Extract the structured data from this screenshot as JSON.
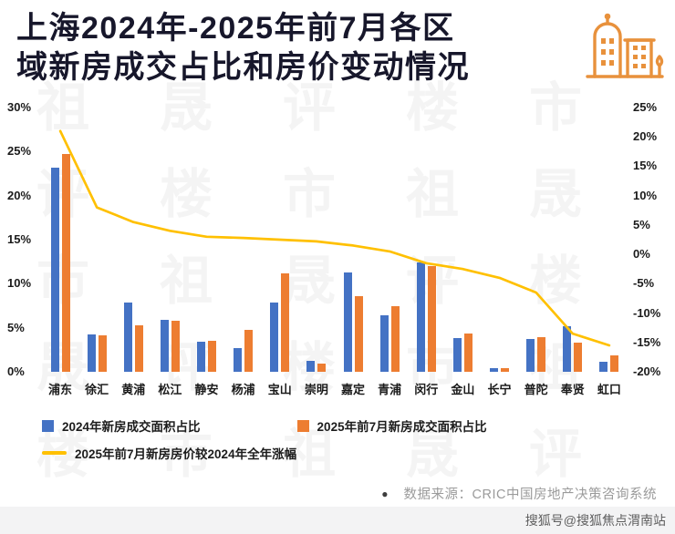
{
  "header": {
    "title_line1": "上海2024年-2025年前7月各区",
    "title_line2": "域新房成交占比和房价变动情况"
  },
  "watermark": {
    "chars": [
      "祖",
      "晟",
      "评",
      "楼",
      "市"
    ]
  },
  "chart_data": {
    "type": "bar+line",
    "categories": [
      "浦东",
      "徐汇",
      "黄浦",
      "松江",
      "静安",
      "杨浦",
      "宝山",
      "崇明",
      "嘉定",
      "青浦",
      "闵行",
      "金山",
      "长宁",
      "普陀",
      "奉贤",
      "虹口"
    ],
    "series": [
      {
        "name": "2024年新房成交面积占比",
        "type": "bar",
        "axis": "left",
        "color": "#4472C4",
        "values": [
          23.2,
          4.2,
          7.9,
          5.9,
          3.4,
          2.7,
          7.9,
          1.2,
          11.3,
          6.4,
          12.4,
          3.8,
          0.4,
          3.7,
          5.2,
          1.1
        ]
      },
      {
        "name": "2025年前7月新房成交面积占比",
        "type": "bar",
        "axis": "left",
        "color": "#ED7D31",
        "values": [
          24.7,
          4.1,
          5.3,
          5.8,
          3.5,
          4.8,
          11.2,
          0.9,
          8.6,
          7.4,
          12.0,
          4.3,
          0.4,
          3.9,
          3.3,
          1.9
        ]
      },
      {
        "name": "2025年前7月新房房价较2024年全年涨幅",
        "type": "line",
        "axis": "right",
        "color": "#FFC000",
        "values": [
          21.0,
          8.0,
          5.5,
          4.0,
          3.0,
          2.8,
          2.5,
          2.2,
          1.5,
          0.5,
          -1.5,
          -2.5,
          -4.0,
          -6.5,
          -13.5,
          -15.5
        ]
      }
    ],
    "left_axis": {
      "ticks": [
        "30%",
        "25%",
        "20%",
        "15%",
        "10%",
        "5%",
        "0%"
      ],
      "min": 0,
      "max": 30
    },
    "right_axis": {
      "ticks": [
        "25%",
        "20%",
        "15%",
        "10%",
        "5%",
        "0%",
        "-5%",
        "-10%",
        "-15%",
        "-20%"
      ],
      "min": -20,
      "max": 25
    },
    "grid": false,
    "legend_position": "bottom"
  },
  "footer": {
    "bullet": "●",
    "source": "数据来源：CRIC中国房地产决策咨询系统"
  },
  "bottom_bar": {
    "text": "搜狐号@搜狐焦点渭南站"
  },
  "icons": {
    "building_icon_color": "#E8913C"
  }
}
